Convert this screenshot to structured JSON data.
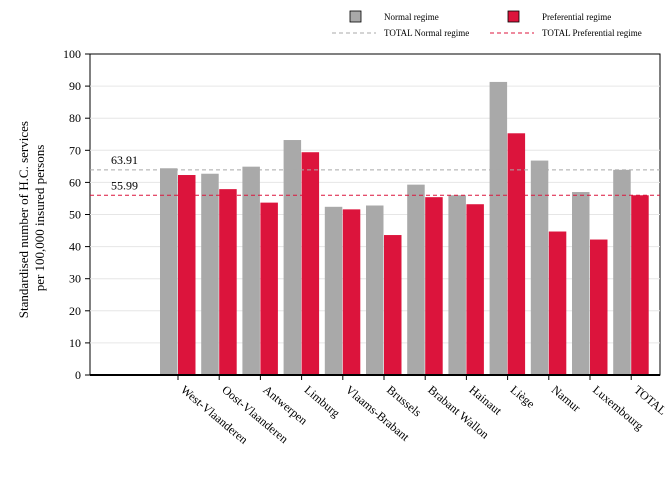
{
  "chart_data": {
    "type": "bar",
    "ylabel_lines": [
      "Standardised number of H.C. services",
      "per 100,000 insured persons"
    ],
    "categories": [
      "West-Vlaanderen",
      "Oost-Vlaanderen",
      "Antwerpen",
      "Limburg",
      "Vlaams-Brabant",
      "Brussels",
      "Brabant Wallon",
      "Hainaut",
      "Liège",
      "Namur",
      "Luxembourg",
      "TOTAL"
    ],
    "series": [
      {
        "name": "Normal regime",
        "color": "#a9a9a9",
        "values": [
          64.4,
          62.7,
          64.9,
          73.2,
          52.4,
          52.8,
          59.3,
          56.0,
          91.3,
          66.8,
          57.0,
          63.91
        ]
      },
      {
        "name": "Preferential regime",
        "color": "#dc143c",
        "values": [
          62.3,
          57.9,
          53.7,
          69.4,
          51.6,
          43.6,
          55.4,
          53.2,
          75.3,
          44.7,
          42.2,
          55.99
        ]
      }
    ],
    "reference_lines": [
      {
        "name": "TOTAL Normal regime",
        "value": 63.91,
        "label": "63.91",
        "color": "#a9a9a9"
      },
      {
        "name": "TOTAL Preferential regime",
        "value": 55.99,
        "label": "55.99",
        "color": "#dc143c"
      }
    ],
    "ylim": [
      0,
      100
    ],
    "yticks": [
      0,
      10,
      20,
      30,
      40,
      50,
      60,
      70,
      80,
      90,
      100
    ],
    "grid": true,
    "legend_position": "top-right"
  }
}
